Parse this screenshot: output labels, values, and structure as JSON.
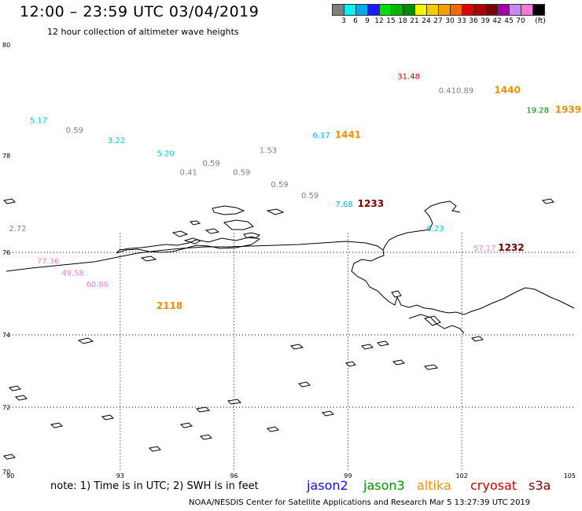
{
  "header": {
    "title": "12:00 – 23:59 UTC 03/04/2019",
    "subtitle": "12 hour collection of altimeter wave heights"
  },
  "colorbar": {
    "unit": "(ft)",
    "colors": [
      "#7f7f7f",
      "#00f5f5",
      "#00aaf0",
      "#1a1af5",
      "#00e000",
      "#00b800",
      "#008c00",
      "#f5f500",
      "#f5cc00",
      "#f5a000",
      "#f56800",
      "#e00000",
      "#b00000",
      "#780000",
      "#a000a0",
      "#cc88f0",
      "#f57ad8",
      "#000000"
    ],
    "labels": [
      "3",
      "6",
      "9",
      "12",
      "15",
      "18",
      "21",
      "24",
      "27",
      "30",
      "33",
      "36",
      "39",
      "42",
      "45",
      "70"
    ]
  },
  "map": {
    "lat_labels": [
      "80",
      "78",
      "76",
      "74",
      "72",
      "70"
    ],
    "lon_labels": [
      "90",
      "93",
      "96",
      "99",
      "102",
      "105"
    ],
    "observations": [
      {
        "text": "31.48",
        "color": "#d40000",
        "lon": 100.6,
        "lat": 79.38
      },
      {
        "text": "0.410.89",
        "color": "#808080",
        "lon": 101.85,
        "lat": 79.13
      },
      {
        "text": "1440",
        "color": "#f29000",
        "lon": 103.2,
        "lat": 79.13
      },
      {
        "text": "19.28",
        "color": "#008000",
        "lon": 104.0,
        "lat": 78.77
      },
      {
        "text": "1939",
        "color": "#f29000",
        "lon": 104.8,
        "lat": 78.77
      },
      {
        "text": "5.17",
        "color": "#00c8d8",
        "lon": 90.85,
        "lat": 78.59
      },
      {
        "text": "0.59",
        "color": "#808080",
        "lon": 91.8,
        "lat": 78.41
      },
      {
        "text": "3.22",
        "color": "#00c8d8",
        "lon": 92.9,
        "lat": 78.23
      },
      {
        "text": "6.17",
        "color": "#00aaf0",
        "lon": 98.3,
        "lat": 78.32
      },
      {
        "text": "1441",
        "color": "#f29000",
        "lon": 99.0,
        "lat": 78.32
      },
      {
        "text": "1.53",
        "color": "#808080",
        "lon": 96.9,
        "lat": 78.05
      },
      {
        "text": "5.20",
        "color": "#00c8d8",
        "lon": 94.2,
        "lat": 77.99
      },
      {
        "text": "0.59",
        "color": "#808080",
        "lon": 95.4,
        "lat": 77.79
      },
      {
        "text": "0.41",
        "color": "#808080",
        "lon": 94.8,
        "lat": 77.6
      },
      {
        "text": "0.59",
        "color": "#808080",
        "lon": 96.2,
        "lat": 77.6
      },
      {
        "text": "0.59",
        "color": "#808080",
        "lon": 97.2,
        "lat": 77.35
      },
      {
        "text": "0.59",
        "color": "#808080",
        "lon": 98.0,
        "lat": 77.12
      },
      {
        "text": "7.68",
        "color": "#00aaf0",
        "lon": 98.9,
        "lat": 76.94
      },
      {
        "text": "1233",
        "color": "#7a0000",
        "lon": 99.6,
        "lat": 76.94
      },
      {
        "text": "2.72",
        "color": "#808080",
        "lon": 90.3,
        "lat": 76.44
      },
      {
        "text": "6.23",
        "color": "#00c8d8",
        "lon": 101.3,
        "lat": 76.44
      },
      {
        "text": "57.17",
        "color": "#f080d8",
        "lon": 102.6,
        "lat": 76.03
      },
      {
        "text": "1232",
        "color": "#7a0000",
        "lon": 103.3,
        "lat": 76.03
      },
      {
        "text": "77.36",
        "color": "#f080d8",
        "lon": 91.1,
        "lat": 75.72
      },
      {
        "text": "49.58",
        "color": "#f080d8",
        "lon": 91.75,
        "lat": 75.44
      },
      {
        "text": "60.86",
        "color": "#f080d8",
        "lon": 92.4,
        "lat": 75.16
      },
      {
        "text": "2118",
        "color": "#f29000",
        "lon": 94.3,
        "lat": 74.63
      }
    ]
  },
  "footer": {
    "note": "note:  1) Time is in UTC;  2) SWH is in feet",
    "missions": [
      {
        "name": "jason2",
        "color": "#1010e0"
      },
      {
        "name": "jason3",
        "color": "#009000"
      },
      {
        "name": "altika",
        "color": "#f29000"
      },
      {
        "name": "cryosat",
        "color": "#d40000"
      },
      {
        "name": "s3a",
        "color": "#7a0000"
      }
    ],
    "credit": "NOAA/NESDIS Center for Satellite Applications and Research   Mar  5 13:27:39 UTC 2019"
  }
}
